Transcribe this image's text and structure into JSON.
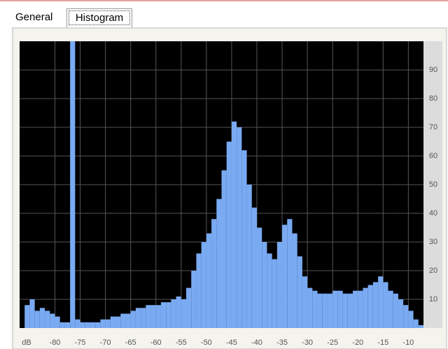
{
  "tabs": [
    "General",
    "Histogram"
  ],
  "chart_data": {
    "type": "histogram",
    "x_label": "dB",
    "color": "#79aaf2",
    "grid": true,
    "bins": [
      -86,
      -85,
      -84,
      -83,
      -82,
      -81,
      -80,
      -79,
      -78,
      -77,
      -76,
      -75,
      -74,
      -73,
      -72,
      -71,
      -70,
      -69,
      -68,
      -67,
      -66,
      -65,
      -64,
      -63,
      -62,
      -61,
      -60,
      -59,
      -58,
      -57,
      -56,
      -55,
      -54,
      -53,
      -52,
      -51,
      -50,
      -49,
      -48,
      -47,
      -46,
      -45,
      -44,
      -43,
      -42,
      -41,
      -40,
      -39,
      -38,
      -37,
      -36,
      -35,
      -34,
      -33,
      -32,
      -31,
      -30,
      -29,
      -28,
      -27,
      -26,
      -25,
      -24,
      -23,
      -22,
      -21,
      -20,
      -19,
      -18,
      -17,
      -16,
      -15,
      -14,
      -13,
      -12,
      -11,
      -10,
      -9,
      -8,
      -7
    ],
    "values": [
      8,
      10,
      6,
      7,
      6,
      5,
      4,
      2,
      2,
      100,
      3,
      2,
      2,
      2,
      2,
      3,
      3,
      4,
      4,
      5,
      5,
      6,
      7,
      7,
      8,
      8,
      8,
      9,
      9,
      10,
      11,
      10,
      14,
      20,
      26,
      30,
      33,
      38,
      45,
      55,
      65,
      72,
      70,
      62,
      50,
      42,
      35,
      30,
      26,
      24,
      30,
      36,
      38,
      33,
      25,
      18,
      14,
      13,
      12,
      12,
      12,
      13,
      13,
      12,
      12,
      13,
      13,
      14,
      15,
      16,
      18,
      16,
      13,
      12,
      10,
      8,
      6,
      3,
      1
    ],
    "xlim": [
      -87,
      -7
    ],
    "xticks": [
      -80,
      -75,
      -70,
      -65,
      -60,
      -55,
      -50,
      -45,
      -40,
      -35,
      -30,
      -25,
      -20,
      -15,
      -10
    ],
    "ylim": [
      0,
      100
    ],
    "yticks": [
      10,
      20,
      30,
      40,
      50,
      60,
      70,
      80,
      90
    ]
  }
}
